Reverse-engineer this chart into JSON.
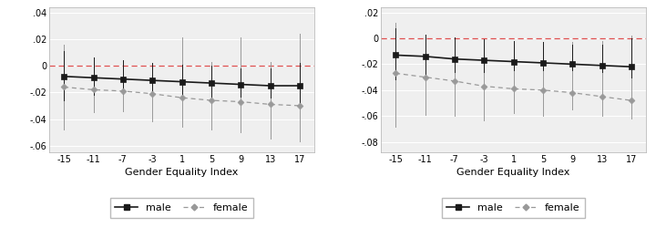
{
  "x": [
    -15,
    -11,
    -7,
    -3,
    1,
    5,
    9,
    13,
    17
  ],
  "panel1": {
    "male_y": [
      -0.008,
      -0.009,
      -0.01,
      -0.011,
      -0.012,
      -0.013,
      -0.014,
      -0.015,
      -0.015
    ],
    "male_lo": [
      -0.026,
      -0.022,
      -0.021,
      -0.022,
      -0.023,
      -0.023,
      -0.023,
      -0.024,
      -0.028
    ],
    "male_hi": [
      0.011,
      0.006,
      0.004,
      0.002,
      0.001,
      0.0,
      -0.002,
      -0.002,
      0.002
    ],
    "fem_y": [
      -0.016,
      -0.018,
      -0.019,
      -0.021,
      -0.024,
      -0.026,
      -0.027,
      -0.029,
      -0.03
    ],
    "fem_lo": [
      -0.048,
      -0.035,
      -0.034,
      -0.042,
      -0.046,
      -0.048,
      -0.05,
      -0.055,
      -0.057
    ],
    "fem_hi": [
      0.016,
      0.002,
      0.001,
      0.001,
      0.021,
      0.003,
      0.021,
      0.003,
      0.024
    ],
    "ylim": [
      -0.065,
      0.044
    ],
    "yticks": [
      -0.06,
      -0.04,
      -0.02,
      0.0,
      0.02,
      0.04
    ],
    "yticklabels": [
      "-.06",
      "-.04",
      "-.02",
      "0",
      ".02",
      ".04"
    ]
  },
  "panel2": {
    "male_y": [
      -0.013,
      -0.014,
      -0.016,
      -0.017,
      -0.018,
      -0.019,
      -0.02,
      -0.021,
      -0.022
    ],
    "male_lo": [
      -0.032,
      -0.028,
      -0.026,
      -0.026,
      -0.025,
      -0.025,
      -0.025,
      -0.026,
      -0.03
    ],
    "male_hi": [
      0.008,
      0.003,
      0.001,
      -0.001,
      -0.002,
      -0.003,
      -0.005,
      -0.005,
      0.0
    ],
    "fem_y": [
      -0.027,
      -0.03,
      -0.033,
      -0.037,
      -0.039,
      -0.04,
      -0.042,
      -0.045,
      -0.048
    ],
    "fem_lo": [
      -0.068,
      -0.059,
      -0.06,
      -0.063,
      -0.058,
      -0.06,
      -0.055,
      -0.06,
      -0.062
    ],
    "fem_hi": [
      0.012,
      0.001,
      -0.002,
      -0.005,
      -0.005,
      -0.006,
      -0.003,
      -0.002,
      0.002
    ],
    "ylim": [
      -0.088,
      0.024
    ],
    "yticks": [
      -0.08,
      -0.06,
      -0.04,
      -0.02,
      0.0,
      0.02
    ],
    "yticklabels": [
      "-.08",
      "-.06",
      "-.04",
      "-.02",
      "0",
      ".02"
    ]
  },
  "xlabel": "Gender Equality Index",
  "male_color": "#1a1a1a",
  "fem_color": "#999999",
  "ref_color": "#e05050",
  "plot_bg": "#efefef",
  "fig_bg": "#ffffff",
  "grid_color": "#ffffff",
  "spine_color": "#bbbbbb",
  "tick_fontsize": 7,
  "label_fontsize": 8,
  "legend_fontsize": 8
}
